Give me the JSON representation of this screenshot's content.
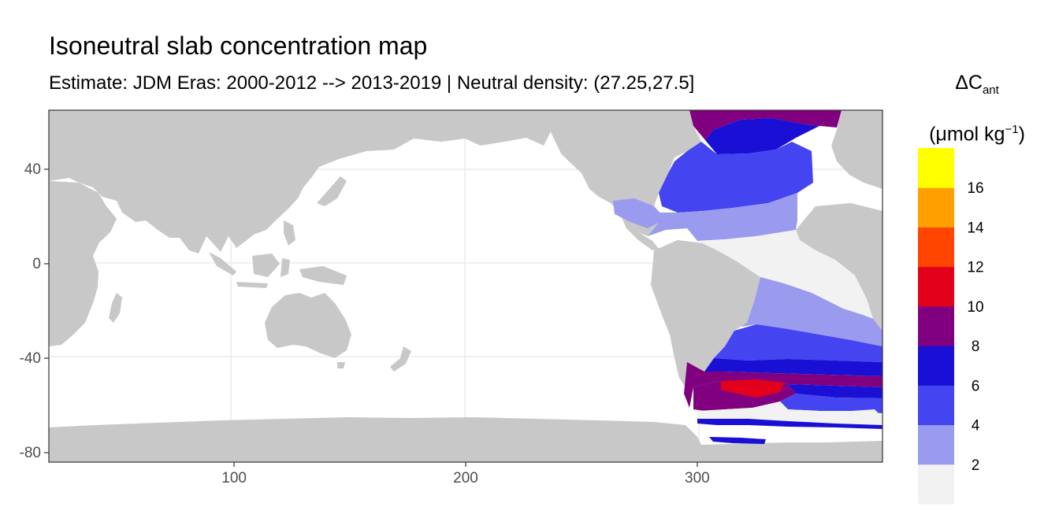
{
  "header": {
    "title": "Isoneutral slab concentration map",
    "subtitle": "Estimate: JDM Eras: 2000-2012 --> 2013-2019 | Neutral density: (27.25,27.5]"
  },
  "legend": {
    "title_symbol": "ΔC",
    "title_subscript": "ant",
    "unit_text": "(μmol kg",
    "unit_superscript": "−1",
    "unit_close": ")",
    "bins": [
      {
        "color": "#f2f2f2"
      },
      {
        "color": "#9a9aee"
      },
      {
        "color": "#4444f0"
      },
      {
        "color": "#1a0fd4"
      },
      {
        "color": "#800080"
      },
      {
        "color": "#e3001b"
      },
      {
        "color": "#ff4500"
      },
      {
        "color": "#ffa000"
      },
      {
        "color": "#ffff00"
      }
    ],
    "breaks": [
      "2",
      "4",
      "6",
      "8",
      "10",
      "12",
      "14",
      "16"
    ]
  },
  "axes": {
    "x_ticks": [
      {
        "value": 100,
        "label": "100"
      },
      {
        "value": 200,
        "label": "200"
      },
      {
        "value": 300,
        "label": "300"
      }
    ],
    "y_ticks": [
      {
        "value": 40,
        "label": "40"
      },
      {
        "value": 0,
        "label": "0"
      },
      {
        "value": -40,
        "label": "-40"
      },
      {
        "value": -80,
        "label": "-80"
      }
    ],
    "x_range": [
      20,
      380
    ],
    "y_range": [
      -84,
      65
    ]
  },
  "colors": {
    "land": "#c8c8c8",
    "ocean": "#ffffff",
    "grid": "#ebebeb"
  }
}
